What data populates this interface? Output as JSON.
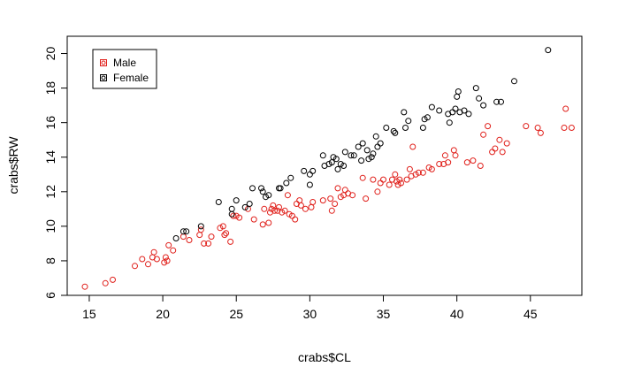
{
  "chart_data": {
    "type": "scatter",
    "xlabel": "crabs$CL",
    "ylabel": "crabs$RW",
    "xlim": [
      13.5,
      48.5
    ],
    "ylim": [
      6,
      21
    ],
    "xticks": [
      15,
      20,
      25,
      30,
      35,
      40,
      45
    ],
    "yticks": [
      6,
      8,
      10,
      12,
      14,
      16,
      18,
      20
    ],
    "grid": false,
    "legend": {
      "position": "top-left",
      "entries": [
        "Male",
        "Female"
      ]
    },
    "marker": "open-circle",
    "series": [
      {
        "name": "Male",
        "color": "#e0201b",
        "points": [
          [
            14.7,
            6.5
          ],
          [
            16.1,
            6.7
          ],
          [
            16.6,
            6.9
          ],
          [
            18.1,
            7.7
          ],
          [
            18.6,
            8.1
          ],
          [
            19.0,
            7.8
          ],
          [
            19.3,
            8.2
          ],
          [
            19.4,
            8.5
          ],
          [
            19.6,
            8.1
          ],
          [
            20.1,
            7.9
          ],
          [
            20.2,
            8.2
          ],
          [
            20.3,
            8.0
          ],
          [
            20.4,
            8.9
          ],
          [
            20.7,
            8.6
          ],
          [
            21.4,
            9.4
          ],
          [
            21.8,
            9.2
          ],
          [
            22.5,
            9.5
          ],
          [
            22.6,
            9.8
          ],
          [
            22.8,
            9.0
          ],
          [
            23.1,
            9.0
          ],
          [
            23.3,
            9.4
          ],
          [
            23.9,
            9.9
          ],
          [
            24.1,
            10.0
          ],
          [
            24.2,
            9.5
          ],
          [
            24.3,
            9.6
          ],
          [
            24.6,
            9.1
          ],
          [
            24.8,
            10.6
          ],
          [
            25.0,
            10.6
          ],
          [
            25.2,
            10.5
          ],
          [
            25.8,
            11.0
          ],
          [
            26.2,
            10.4
          ],
          [
            26.8,
            10.1
          ],
          [
            26.9,
            11.0
          ],
          [
            27.2,
            10.2
          ],
          [
            27.3,
            10.8
          ],
          [
            27.4,
            11.0
          ],
          [
            27.5,
            11.2
          ],
          [
            27.6,
            10.9
          ],
          [
            27.8,
            10.9
          ],
          [
            27.9,
            11.1
          ],
          [
            28.1,
            10.8
          ],
          [
            28.3,
            10.9
          ],
          [
            28.5,
            11.8
          ],
          [
            28.6,
            10.7
          ],
          [
            28.8,
            10.6
          ],
          [
            29.0,
            10.4
          ],
          [
            29.1,
            11.3
          ],
          [
            29.3,
            11.5
          ],
          [
            29.4,
            11.2
          ],
          [
            29.7,
            11.0
          ],
          [
            30.1,
            11.1
          ],
          [
            30.2,
            11.4
          ],
          [
            30.9,
            11.5
          ],
          [
            31.4,
            11.6
          ],
          [
            31.5,
            10.9
          ],
          [
            31.7,
            11.3
          ],
          [
            31.9,
            12.2
          ],
          [
            32.1,
            11.7
          ],
          [
            32.3,
            11.8
          ],
          [
            32.4,
            12.1
          ],
          [
            32.6,
            11.9
          ],
          [
            32.9,
            11.8
          ],
          [
            33.6,
            12.8
          ],
          [
            33.8,
            11.6
          ],
          [
            34.3,
            12.7
          ],
          [
            34.6,
            12.0
          ],
          [
            34.8,
            12.5
          ],
          [
            35.0,
            12.7
          ],
          [
            35.4,
            12.4
          ],
          [
            35.6,
            12.7
          ],
          [
            35.8,
            13.0
          ],
          [
            35.9,
            12.6
          ],
          [
            36.0,
            12.4
          ],
          [
            36.1,
            12.7
          ],
          [
            36.2,
            12.5
          ],
          [
            36.6,
            12.7
          ],
          [
            36.8,
            13.3
          ],
          [
            36.9,
            12.9
          ],
          [
            37.0,
            14.6
          ],
          [
            37.2,
            13.0
          ],
          [
            37.4,
            13.1
          ],
          [
            37.7,
            13.1
          ],
          [
            38.1,
            13.4
          ],
          [
            38.3,
            13.3
          ],
          [
            38.8,
            13.6
          ],
          [
            39.1,
            13.6
          ],
          [
            39.2,
            14.1
          ],
          [
            39.4,
            13.7
          ],
          [
            39.8,
            14.4
          ],
          [
            39.9,
            14.1
          ],
          [
            40.7,
            13.7
          ],
          [
            41.1,
            13.8
          ],
          [
            41.6,
            13.5
          ],
          [
            41.8,
            15.3
          ],
          [
            42.1,
            15.8
          ],
          [
            42.4,
            14.3
          ],
          [
            42.6,
            14.5
          ],
          [
            42.9,
            15.0
          ],
          [
            43.1,
            14.3
          ],
          [
            43.4,
            14.8
          ],
          [
            44.7,
            15.8
          ],
          [
            45.5,
            15.7
          ],
          [
            45.7,
            15.4
          ],
          [
            47.3,
            15.7
          ],
          [
            47.4,
            16.8
          ],
          [
            47.8,
            15.7
          ]
        ]
      },
      {
        "name": "Female",
        "color": "#000000",
        "points": [
          [
            20.9,
            9.3
          ],
          [
            21.4,
            9.7
          ],
          [
            21.6,
            9.7
          ],
          [
            22.6,
            10.0
          ],
          [
            23.8,
            11.4
          ],
          [
            24.7,
            11.0
          ],
          [
            24.7,
            10.7
          ],
          [
            25.0,
            11.5
          ],
          [
            25.6,
            11.1
          ],
          [
            25.9,
            11.3
          ],
          [
            26.1,
            12.2
          ],
          [
            26.7,
            12.2
          ],
          [
            26.8,
            12.0
          ],
          [
            27.0,
            11.7
          ],
          [
            27.2,
            11.8
          ],
          [
            27.9,
            12.2
          ],
          [
            28.0,
            12.2
          ],
          [
            28.4,
            12.5
          ],
          [
            28.7,
            12.8
          ],
          [
            29.6,
            13.2
          ],
          [
            30.0,
            12.4
          ],
          [
            30.0,
            13.0
          ],
          [
            30.2,
            13.2
          ],
          [
            30.9,
            14.1
          ],
          [
            31.0,
            13.5
          ],
          [
            31.3,
            13.6
          ],
          [
            31.5,
            13.7
          ],
          [
            31.6,
            14.0
          ],
          [
            31.8,
            13.9
          ],
          [
            31.9,
            13.3
          ],
          [
            32.1,
            13.6
          ],
          [
            32.3,
            13.5
          ],
          [
            32.4,
            14.3
          ],
          [
            32.8,
            14.1
          ],
          [
            33.0,
            14.1
          ],
          [
            33.3,
            14.6
          ],
          [
            33.5,
            13.8
          ],
          [
            33.6,
            14.8
          ],
          [
            33.9,
            14.4
          ],
          [
            34.0,
            13.9
          ],
          [
            34.2,
            14.0
          ],
          [
            34.3,
            14.2
          ],
          [
            34.5,
            15.2
          ],
          [
            34.6,
            14.6
          ],
          [
            34.8,
            14.8
          ],
          [
            35.2,
            15.7
          ],
          [
            35.7,
            15.5
          ],
          [
            35.8,
            15.4
          ],
          [
            36.4,
            16.6
          ],
          [
            36.5,
            15.7
          ],
          [
            36.7,
            16.1
          ],
          [
            37.7,
            15.7
          ],
          [
            37.8,
            16.2
          ],
          [
            38.0,
            16.3
          ],
          [
            38.3,
            16.9
          ],
          [
            38.8,
            16.7
          ],
          [
            39.4,
            16.5
          ],
          [
            39.5,
            16.0
          ],
          [
            39.7,
            16.6
          ],
          [
            39.9,
            16.8
          ],
          [
            40.0,
            17.5
          ],
          [
            40.1,
            17.8
          ],
          [
            40.2,
            16.6
          ],
          [
            40.5,
            16.7
          ],
          [
            40.8,
            16.5
          ],
          [
            41.3,
            18.0
          ],
          [
            41.5,
            17.4
          ],
          [
            41.8,
            17.0
          ],
          [
            42.7,
            17.2
          ],
          [
            43.0,
            17.2
          ],
          [
            43.9,
            18.4
          ],
          [
            46.2,
            20.2
          ]
        ]
      }
    ]
  }
}
